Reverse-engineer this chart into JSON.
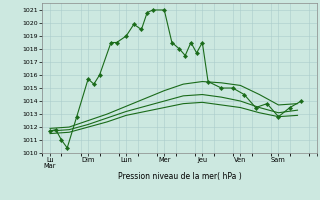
{
  "xlabel": "Pression niveau de la mer( hPa )",
  "background_color": "#cce8e0",
  "grid_color": "#aacccc",
  "line_color": "#1a6b1a",
  "ylim": [
    1010,
    1021.5
  ],
  "yticks": [
    1010,
    1011,
    1012,
    1013,
    1014,
    1015,
    1016,
    1017,
    1018,
    1019,
    1020,
    1021
  ],
  "day_positions": [
    0,
    1,
    2,
    3,
    4,
    5,
    6,
    7
  ],
  "day_labels": [
    "Lu\nMar",
    "Dim",
    "Lun",
    "Mer",
    "Jeu",
    "Ven",
    "Sam",
    ""
  ],
  "series1_x": [
    0.0,
    0.15,
    0.3,
    0.45,
    0.7,
    1.0,
    1.15,
    1.3,
    1.6,
    1.75,
    2.0,
    2.2,
    2.4,
    2.55,
    2.7,
    3.0,
    3.2,
    3.4,
    3.55,
    3.7,
    3.85,
    4.0,
    4.15,
    4.5,
    4.8,
    5.1,
    5.4,
    5.7,
    6.0,
    6.3,
    6.6
  ],
  "series1_y": [
    1011.7,
    1011.8,
    1011.0,
    1010.4,
    1012.8,
    1015.7,
    1015.3,
    1016.0,
    1018.5,
    1018.5,
    1019.0,
    1019.9,
    1019.5,
    1020.8,
    1021.0,
    1021.0,
    1018.5,
    1018.0,
    1017.5,
    1018.5,
    1017.7,
    1018.5,
    1015.5,
    1015.0,
    1015.0,
    1014.5,
    1013.5,
    1013.8,
    1012.8,
    1013.5,
    1014.0
  ],
  "series2_x": [
    0.0,
    0.5,
    1.0,
    1.5,
    2.0,
    2.5,
    3.0,
    3.5,
    4.0,
    4.5,
    5.0,
    5.5,
    6.0,
    6.5
  ],
  "series2_y": [
    1011.9,
    1012.0,
    1012.5,
    1013.0,
    1013.6,
    1014.2,
    1014.8,
    1015.3,
    1015.5,
    1015.4,
    1015.2,
    1014.5,
    1013.7,
    1013.8
  ],
  "series3_x": [
    0.0,
    0.5,
    1.0,
    1.5,
    2.0,
    2.5,
    3.0,
    3.5,
    4.0,
    4.5,
    5.0,
    5.5,
    6.0,
    6.5
  ],
  "series3_y": [
    1011.7,
    1011.8,
    1012.2,
    1012.7,
    1013.2,
    1013.6,
    1014.0,
    1014.4,
    1014.5,
    1014.3,
    1014.0,
    1013.5,
    1013.1,
    1013.3
  ],
  "series4_x": [
    0.0,
    0.5,
    1.0,
    1.5,
    2.0,
    2.5,
    3.0,
    3.5,
    4.0,
    4.5,
    5.0,
    5.5,
    6.0,
    6.5
  ],
  "series4_y": [
    1011.5,
    1011.6,
    1012.0,
    1012.4,
    1012.9,
    1013.2,
    1013.5,
    1013.8,
    1013.9,
    1013.7,
    1013.5,
    1013.1,
    1012.8,
    1012.9
  ]
}
